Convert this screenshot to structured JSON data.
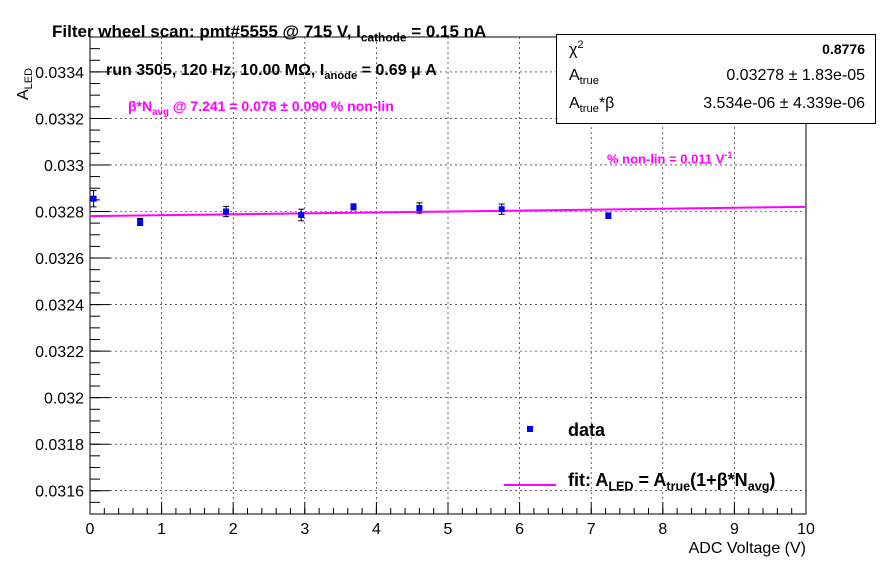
{
  "title": "Filter wheel scan: pmt#5555 @   715 V, I",
  "title_sub": "cathode",
  "title_tail": " = 0.15 nA",
  "run_text": "run 3505, 120 Hz, 10.00 MΩ, I",
  "run_sub": "anode",
  "run_tail": " = 0.69 μ A",
  "beta_pre": "β*N",
  "beta_sub": "avg",
  "beta_tail": " @ 7.241 = 0.078 ± 0.090 % non-lin",
  "nonlin_text": "% non-lin = 0.011 V",
  "nonlin_sup": "-1",
  "stats": {
    "chi2_label": "χ",
    "chi2_sup": "2",
    "chi2_value": "0.8776",
    "atrue_label": "A",
    "atrue_sub": "true",
    "atrue_value": "0.03278 ± 1.83e-05",
    "atb_label": "A",
    "atb_sub": "true",
    "atb_tail": "*β",
    "atb_value": "3.534e-06 ± 4.339e-06"
  },
  "legend": {
    "data_label": "data",
    "fit_pre": "fit: A",
    "fit_sub1": "LED",
    "fit_mid": " = A",
    "fit_sub2": "true",
    "fit_mid2": "(1+β*N",
    "fit_sub3": "avg",
    "fit_tail": ")"
  },
  "colors": {
    "data": "#0000ff",
    "fit": "#ff00ff",
    "grid": "#000000"
  },
  "chart_data": {
    "type": "scatter",
    "xlabel": "ADC Voltage (V)",
    "ylabel": "A",
    "ylabel_sub": "LED",
    "xlim": [
      0,
      10
    ],
    "ylim": [
      0.0315,
      0.03355
    ],
    "xticks": [
      0,
      1,
      2,
      3,
      4,
      5,
      6,
      7,
      8,
      9,
      10
    ],
    "xtick_labels": [
      "0",
      "1",
      "2",
      "3",
      "4",
      "5",
      "6",
      "7",
      "8",
      "9",
      "10"
    ],
    "yticks": [
      0.0316,
      0.0318,
      0.032,
      0.0322,
      0.0324,
      0.0326,
      0.0328,
      0.033,
      0.0332,
      0.0334
    ],
    "ytick_labels": [
      "0.0316",
      "0.0318",
      "0.032",
      "0.0322",
      "0.0324",
      "0.0326",
      "0.0328",
      "0.033",
      "0.0332",
      "0.0334"
    ],
    "grid": true,
    "series": [
      {
        "type": "points",
        "x": [
          0.05,
          0.7,
          1.9,
          2.95,
          3.68,
          4.6,
          5.75,
          7.24
        ],
        "y": [
          0.032855,
          0.032755,
          0.0328,
          0.032785,
          0.03282,
          0.032815,
          0.03281,
          0.032782
        ],
        "err": [
          3.5e-05,
          1.5e-05,
          2.2e-05,
          2.5e-05,
          1.3e-05,
          2.2e-05,
          2.2e-05,
          1.2e-05
        ]
      },
      {
        "type": "line",
        "x": [
          0,
          10
        ],
        "y": [
          0.03278,
          0.03282
        ]
      }
    ]
  }
}
